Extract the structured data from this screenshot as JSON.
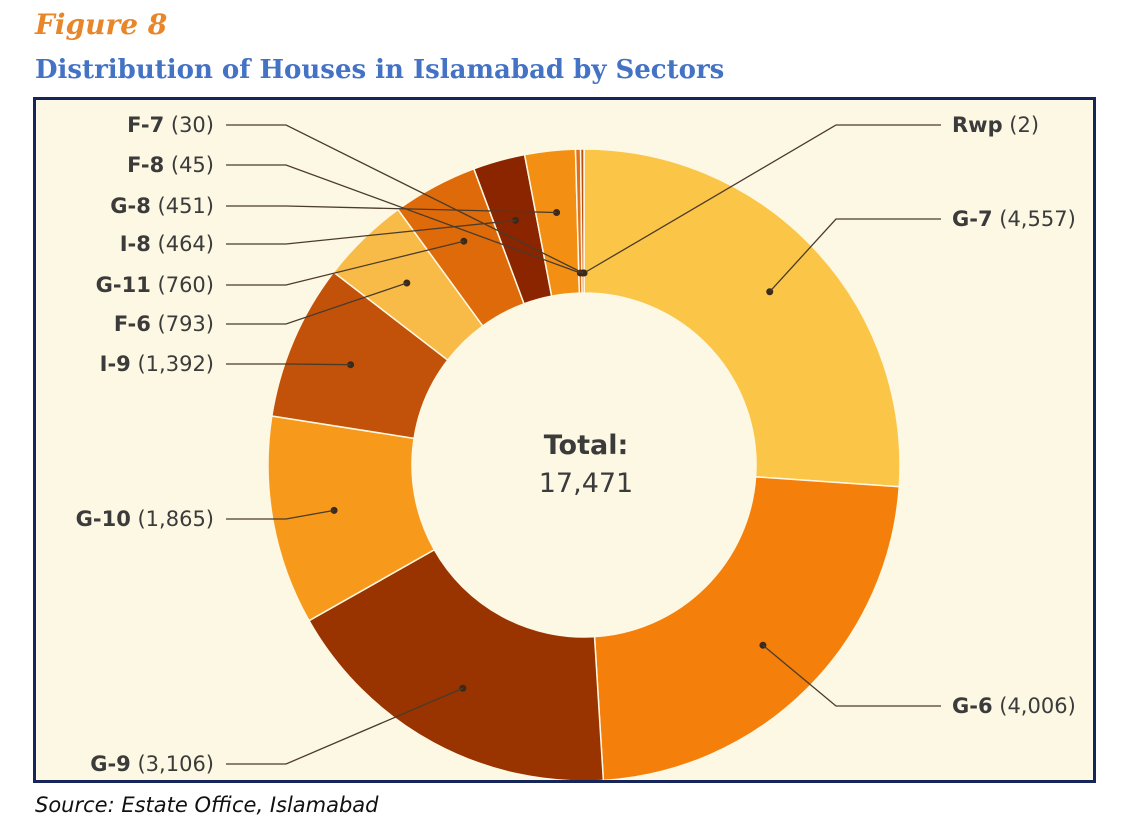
{
  "figure_label": "Figure 8",
  "title": "Distribution of Houses in Islamabad by Sectors",
  "source": "Source: Estate Office, Islamabad",
  "center": {
    "title": "Total:",
    "value": "17,471"
  },
  "chart_data": {
    "type": "pie",
    "donut": true,
    "title": "Distribution of Houses in Islamabad by Sectors",
    "total": 17471,
    "slices": [
      {
        "name": "Rwp",
        "value": 2,
        "label": "Rwp",
        "value_label": "(2)",
        "color": "#f6c344"
      },
      {
        "name": "G-7",
        "value": 4557,
        "label": "G-7",
        "value_label": "(4,557)",
        "color": "#fbc547"
      },
      {
        "name": "G-6",
        "value": 4006,
        "label": "G-6",
        "value_label": "(4,006)",
        "color": "#f57f0b"
      },
      {
        "name": "G-9",
        "value": 3106,
        "label": "G-9",
        "value_label": "(3,106)",
        "color": "#993300"
      },
      {
        "name": "G-10",
        "value": 1865,
        "label": "G-10",
        "value_label": "(1,865)",
        "color": "#f79a1c"
      },
      {
        "name": "I-9",
        "value": 1392,
        "label": "I-9",
        "value_label": "(1,392)",
        "color": "#c2510a"
      },
      {
        "name": "F-6",
        "value": 793,
        "label": "F-6",
        "value_label": "(793)",
        "color": "#f9bb47"
      },
      {
        "name": "G-11",
        "value": 760,
        "label": "G-11",
        "value_label": "(760)",
        "color": "#df6a09"
      },
      {
        "name": "I-8",
        "value": 464,
        "label": "I-8",
        "value_label": "(464)",
        "color": "#8a2500"
      },
      {
        "name": "G-8",
        "value": 451,
        "label": "G-8",
        "value_label": "(451)",
        "color": "#f39013"
      },
      {
        "name": "F-8",
        "value": 45,
        "label": "F-8",
        "value_label": "(45)",
        "color": "#e07020"
      },
      {
        "name": "F-7",
        "value": 30,
        "label": "F-7",
        "value_label": "(30)",
        "color": "#c24d0a"
      }
    ]
  }
}
